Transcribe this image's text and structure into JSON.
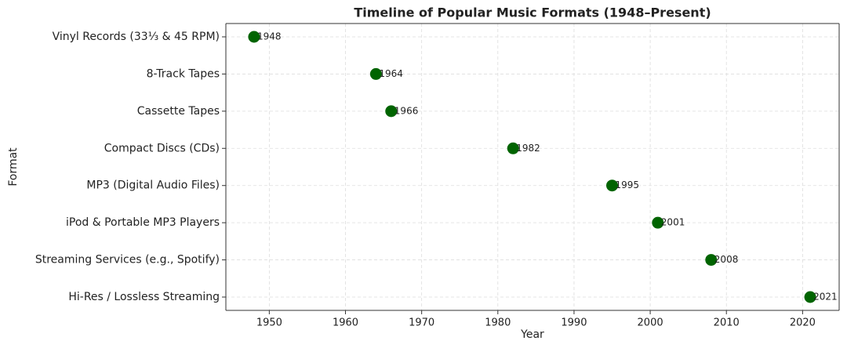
{
  "chart_data": {
    "type": "dot",
    "title": "Timeline of Popular Music Formats (1948–Present)",
    "xlabel": "Year",
    "ylabel": "Format",
    "categories": [
      "Vinyl Records (33⅓ & 45 RPM)",
      "8-Track Tapes",
      "Cassette Tapes",
      "Compact Discs (CDs)",
      "MP3 (Digital Audio Files)",
      "iPod & Portable MP3 Players",
      "Streaming Services (e.g., Spotify)",
      "Hi-Res / Lossless Streaming"
    ],
    "values": [
      1948,
      1964,
      1966,
      1982,
      1995,
      2001,
      2008,
      2021
    ],
    "color": "#006400",
    "xlim": [
      1944.3,
      2024.8
    ],
    "xticks": [
      1950,
      1960,
      1970,
      1980,
      1990,
      2000,
      2010,
      2020
    ],
    "grid": true
  }
}
